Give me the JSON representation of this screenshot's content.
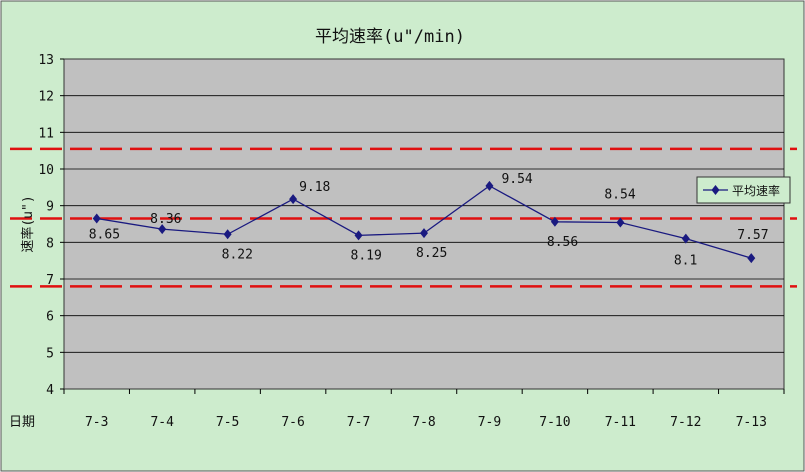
{
  "chart_data": {
    "type": "line",
    "title": "平均速率(u\"/min)",
    "xlabel": "日期",
    "ylabel": "速率(u\")",
    "categories": [
      "7-3",
      "7-4",
      "7-5",
      "7-6",
      "7-7",
      "7-8",
      "7-9",
      "7-10",
      "7-11",
      "7-12",
      "7-13"
    ],
    "series": [
      {
        "name": "平均速率",
        "values": [
          8.65,
          8.36,
          8.22,
          9.18,
          8.19,
          8.25,
          9.54,
          8.56,
          8.54,
          8.1,
          7.57
        ],
        "labels": [
          "8.65",
          "8.36",
          "8.22",
          "9.18",
          "8.19",
          "8.25",
          "9.54",
          "8.56",
          "8.54",
          "8.1",
          "7.57"
        ]
      }
    ],
    "ylim": [
      4,
      13
    ],
    "yticks": [
      "4",
      "5",
      "6",
      "7",
      "8",
      "9",
      "10",
      "11",
      "12",
      "13"
    ],
    "reference_lines": [
      10.55,
      8.65,
      6.8
    ],
    "grid": true,
    "legend_position": "right",
    "colors": {
      "background": "#cdeccd",
      "plot_area": "#c0c0c0",
      "series": "#1a1a80",
      "reference": "#e01010",
      "grid": "#000000"
    }
  }
}
